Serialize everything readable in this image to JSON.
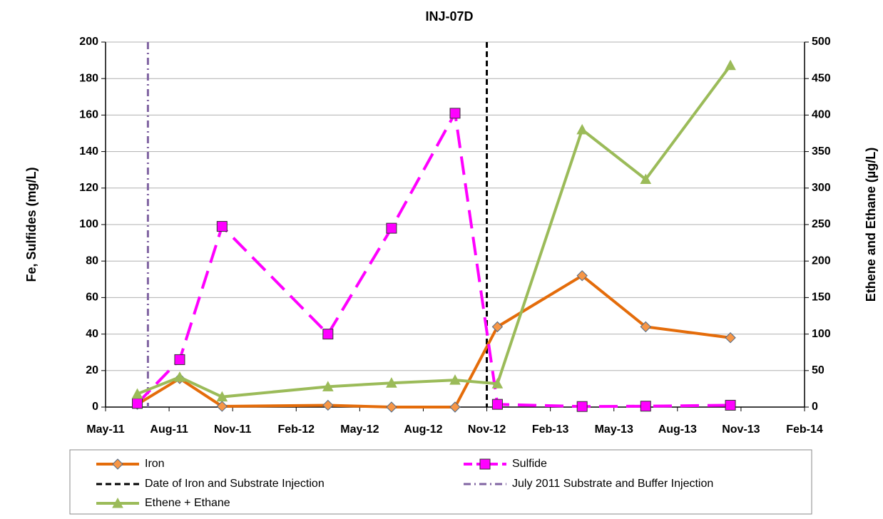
{
  "chart_data": {
    "type": "line",
    "title": "INJ-07D",
    "y_label": "Fe, Sulfides (mg/L)",
    "y2_label": "Ethene and Ethane (µg/L)",
    "x": [
      "2011-06",
      "2011-08",
      "2011-10",
      "2012-03",
      "2012-06",
      "2012-09",
      "2012-11",
      "2013-03",
      "2013-06",
      "2013-10"
    ],
    "xlim": [
      "2011-05",
      "2014-02"
    ],
    "xticks": [
      {
        "value": "2011-05",
        "label": "May-11"
      },
      {
        "value": "2011-08",
        "label": "Aug-11"
      },
      {
        "value": "2011-11",
        "label": "Nov-11"
      },
      {
        "value": "2012-02",
        "label": "Feb-12"
      },
      {
        "value": "2012-05",
        "label": "May-12"
      },
      {
        "value": "2012-08",
        "label": "Aug-12"
      },
      {
        "value": "2012-11",
        "label": "Nov-12"
      },
      {
        "value": "2013-02",
        "label": "Feb-13"
      },
      {
        "value": "2013-05",
        "label": "May-13"
      },
      {
        "value": "2013-08",
        "label": "Aug-13"
      },
      {
        "value": "2013-11",
        "label": "Nov-13"
      },
      {
        "value": "2014-02",
        "label": "Feb-14"
      }
    ],
    "ylim": [
      0,
      200
    ],
    "yticks": [
      0,
      20,
      40,
      60,
      80,
      100,
      120,
      140,
      160,
      180,
      200
    ],
    "y2lim": [
      0,
      500
    ],
    "y2ticks": [
      0,
      50,
      100,
      150,
      200,
      250,
      300,
      350,
      400,
      450,
      500
    ],
    "grid": true,
    "legend": "bottom",
    "series": [
      {
        "name": "Iron",
        "color": "#e46c0a",
        "marker": "diamond",
        "marker_fill": "#f79646",
        "values": [
          1.5,
          15.6,
          0.4,
          1,
          0,
          0,
          44,
          72,
          44,
          38
        ]
      },
      {
        "name": "Sulfide",
        "color": "#ff00ff",
        "marker": "square",
        "marker_fill": "#ff00ff",
        "dash": true,
        "values": [
          2,
          26,
          99,
          40,
          98,
          161,
          1.5,
          0.3,
          0.5,
          1
        ]
      },
      {
        "name": "Ethene + Ethane",
        "color": "#9bbb59",
        "marker": "triangle",
        "marker_fill": "#9bbb59",
        "axis": "y2",
        "values": [
          18,
          41,
          14,
          28,
          33,
          37,
          32,
          380,
          312,
          468
        ]
      }
    ],
    "vlines": [
      {
        "name": "Date of Iron and Substrate Injection",
        "x": "2012-11",
        "color": "#000000",
        "style": "dash"
      },
      {
        "name": "July 2011 Substrate and Buffer Injection",
        "x": "2011-07",
        "color": "#8064a2",
        "style": "dashdot"
      }
    ]
  }
}
